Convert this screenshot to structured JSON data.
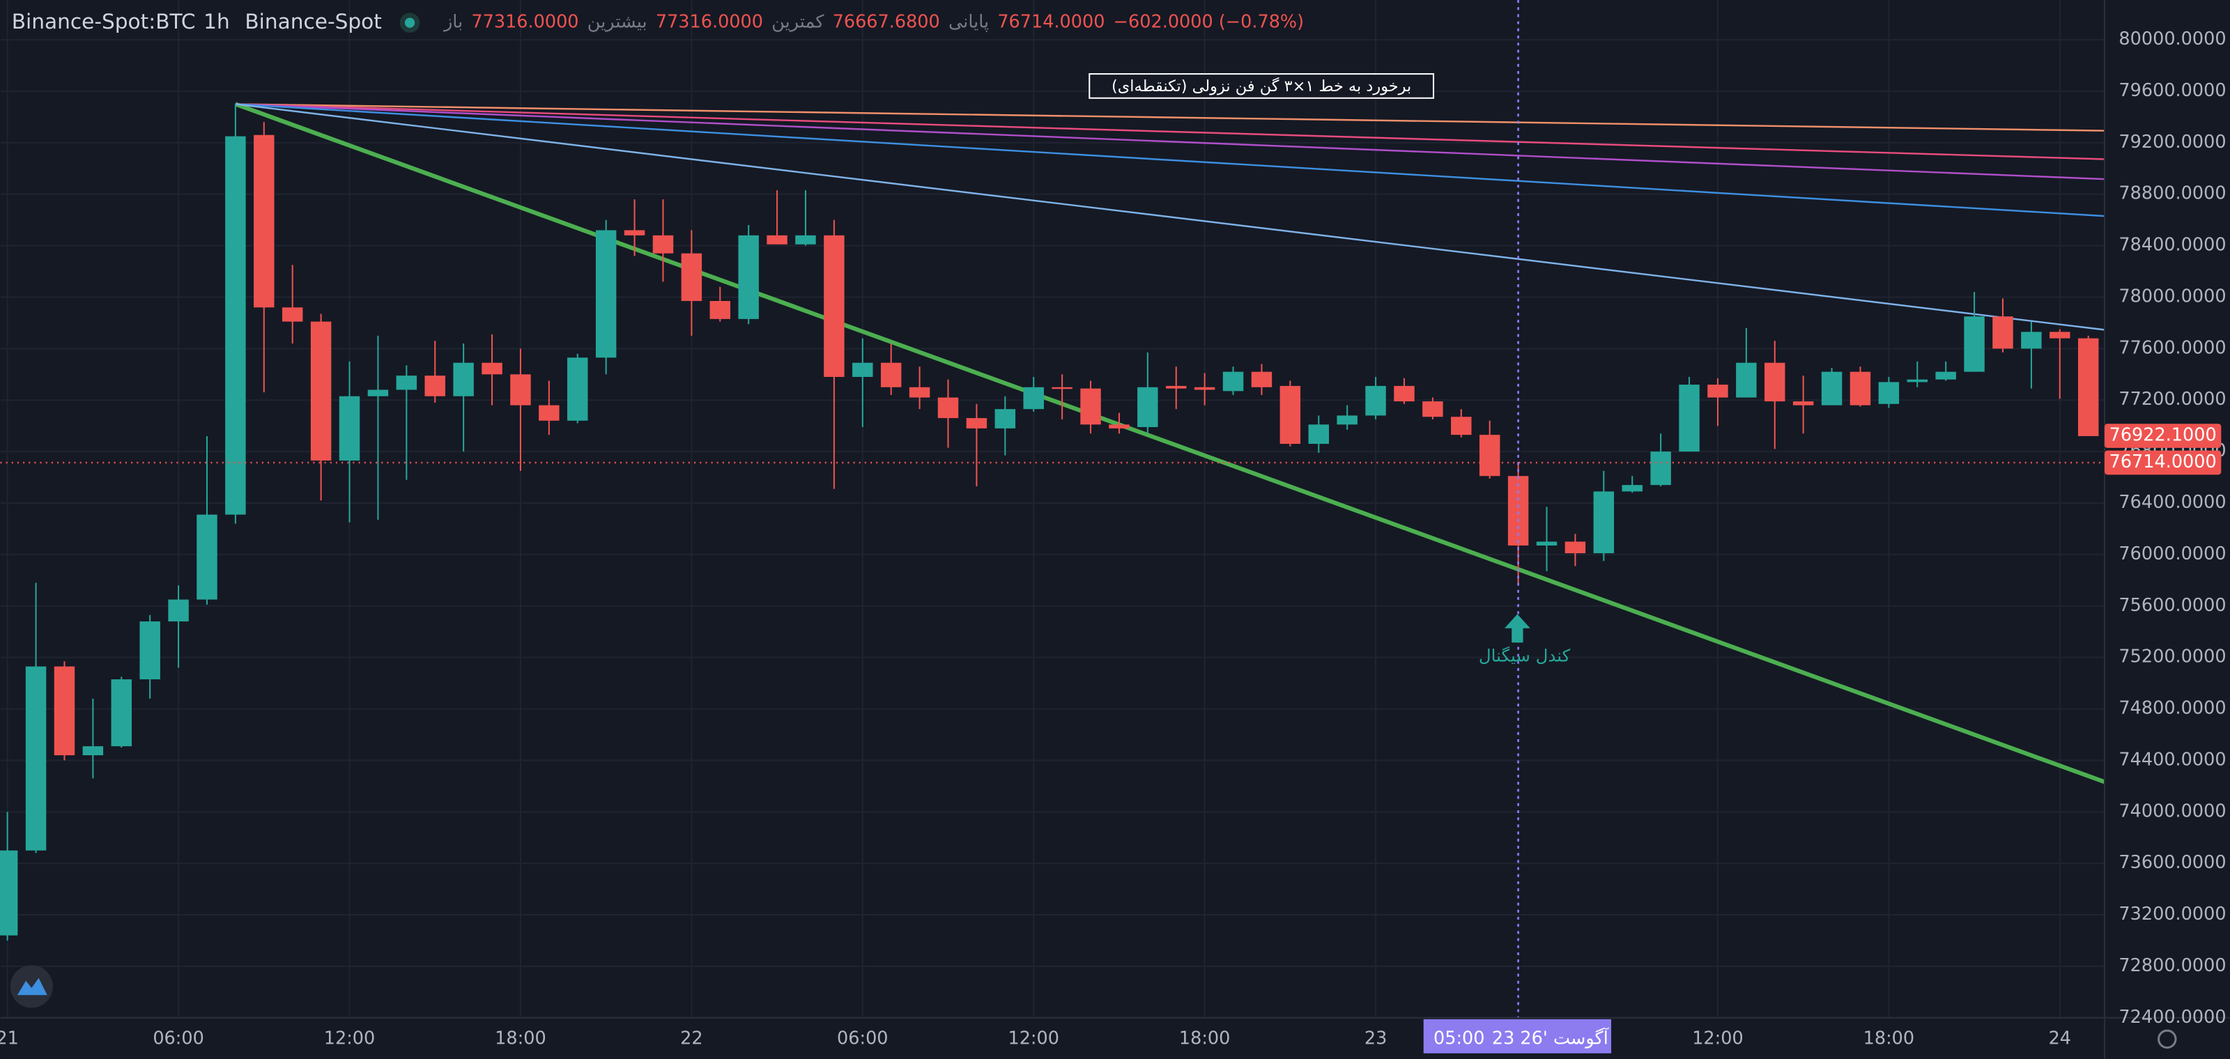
{
  "header": {
    "symbol": "Binance-Spot:BTC",
    "interval": "1h",
    "exchange": "Binance-Spot",
    "ohlc": [
      {
        "label": "باز",
        "value": "77316.0000"
      },
      {
        "label": "بیشترین",
        "value": "77316.0000"
      },
      {
        "label": "کمترین",
        "value": "76667.6800"
      },
      {
        "label": "پایانی",
        "value": "76714.0000"
      }
    ],
    "change": "−602.0000 (−0.78%)"
  },
  "annotation": "برخورد به خط ۱×۳ گن فن نزولی (تکنقطه‌ای)",
  "signal_label": "کندل سیگنال",
  "chart_data": {
    "type": "candlestick",
    "up_color": "#26a69a",
    "down_color": "#ef5350",
    "x": [
      0,
      1,
      2,
      3,
      4,
      5,
      6,
      7,
      8,
      9,
      10,
      11,
      12,
      13,
      14,
      15,
      16,
      17,
      18,
      19,
      20,
      21,
      22,
      23,
      24,
      25,
      26,
      27,
      28,
      29,
      30,
      31,
      32,
      33,
      34,
      35,
      36,
      37,
      38,
      39,
      40,
      41,
      42,
      43,
      44,
      45,
      46,
      47,
      48,
      49,
      50,
      51,
      52,
      53,
      54,
      55,
      56,
      57,
      58,
      59,
      60,
      61,
      62,
      63,
      64,
      65,
      66,
      67,
      68,
      69,
      70,
      71,
      72,
      73
    ],
    "open": [
      73040,
      73700,
      75130,
      74440,
      74510,
      75030,
      75480,
      75650,
      76310,
      79260,
      77920,
      77810,
      76730,
      77230,
      77280,
      77390,
      77230,
      77490,
      77400,
      77160,
      77040,
      77530,
      78520,
      78480,
      78340,
      77970,
      77830,
      78480,
      78410,
      78480,
      77380,
      77490,
      77300,
      77220,
      77060,
      76980,
      77130,
      77300,
      77290,
      77010,
      76990,
      77310,
      77300,
      77270,
      77420,
      77310,
      76860,
      77010,
      77080,
      77310,
      77190,
      77070,
      76930,
      76610,
      76070,
      76100,
      76010,
      76490,
      76540,
      76800,
      77320,
      77220,
      77490,
      77190,
      77160,
      77420,
      77170,
      77340,
      77360,
      77420,
      77850,
      77600,
      77730,
      77680
    ],
    "high": [
      74000,
      75780,
      75170,
      74880,
      75050,
      75530,
      75760,
      76920,
      79500,
      79360,
      78250,
      77870,
      77500,
      77700,
      77470,
      77660,
      77640,
      77710,
      77600,
      77350,
      77560,
      78600,
      78760,
      78760,
      78520,
      78080,
      78560,
      78830,
      78830,
      78600,
      77680,
      77640,
      77460,
      77360,
      77170,
      77230,
      77380,
      77400,
      77350,
      77100,
      77570,
      77460,
      77410,
      77460,
      77480,
      77350,
      77080,
      77160,
      77380,
      77370,
      77220,
      77130,
      77040,
      76720,
      76370,
      76160,
      76650,
      76610,
      76940,
      77380,
      77370,
      77760,
      77660,
      77390,
      77450,
      77460,
      77380,
      77500,
      77500,
      78040,
      77990,
      77810,
      77750,
      77700
    ],
    "low": [
      73000,
      73680,
      74400,
      74260,
      74500,
      74880,
      75120,
      75610,
      76240,
      77260,
      77640,
      76420,
      76250,
      76270,
      76580,
      77180,
      76800,
      77160,
      76650,
      76930,
      77020,
      77400,
      78320,
      78120,
      77700,
      77810,
      77790,
      78410,
      78400,
      76510,
      76990,
      77240,
      77130,
      76830,
      76530,
      76770,
      77110,
      77050,
      76940,
      76940,
      76940,
      77130,
      77160,
      77240,
      77240,
      76840,
      76790,
      76970,
      77050,
      77170,
      77050,
      76910,
      76590,
      75780,
      75870,
      75910,
      75950,
      76480,
      76530,
      76800,
      77000,
      77220,
      76820,
      76940,
      77160,
      77150,
      77140,
      77300,
      77350,
      77420,
      77570,
      77290,
      77210,
      76920
    ],
    "close": [
      73700,
      75130,
      74440,
      74510,
      75030,
      75480,
      75650,
      76310,
      79250,
      77920,
      77810,
      76730,
      77230,
      77280,
      77390,
      77230,
      77490,
      77400,
      77160,
      77040,
      77530,
      78520,
      78480,
      78340,
      77970,
      77830,
      78480,
      78410,
      78480,
      77380,
      77490,
      77300,
      77220,
      77060,
      76980,
      77130,
      77300,
      77290,
      77010,
      76980,
      77300,
      77290,
      77280,
      77420,
      77300,
      76860,
      77010,
      77080,
      77310,
      77190,
      77070,
      76930,
      76610,
      76070,
      76100,
      76010,
      76490,
      76540,
      76800,
      77320,
      77220,
      77490,
      77190,
      77160,
      77420,
      77160,
      77340,
      77360,
      77420,
      77850,
      77600,
      77730,
      77680,
      76920
    ],
    "xlim": [
      -0.25,
      73.57
    ],
    "ylim": [
      72400,
      80309
    ],
    "xticks": [
      {
        "value": 0,
        "label": "21"
      },
      {
        "value": 6,
        "label": "06:00"
      },
      {
        "value": 12,
        "label": "12:00"
      },
      {
        "value": 18,
        "label": "18:00"
      },
      {
        "value": 24,
        "label": "22"
      },
      {
        "value": 30,
        "label": "06:00"
      },
      {
        "value": 36,
        "label": "12:00"
      },
      {
        "value": 42,
        "label": "18:00"
      },
      {
        "value": 48,
        "label": "23"
      },
      {
        "value": 60,
        "label": "12:00"
      },
      {
        "value": 66,
        "label": "18:00"
      },
      {
        "value": 72,
        "label": "24"
      }
    ],
    "yticks": [
      {
        "value": 72400,
        "label": "72400.0000"
      },
      {
        "value": 72800,
        "label": "72800.0000"
      },
      {
        "value": 73200,
        "label": "73200.0000"
      },
      {
        "value": 73600,
        "label": "73600.0000"
      },
      {
        "value": 74000,
        "label": "74000.0000"
      },
      {
        "value": 74400,
        "label": "74400.0000"
      },
      {
        "value": 74800,
        "label": "74800.0000"
      },
      {
        "value": 75200,
        "label": "75200.0000"
      },
      {
        "value": 75600,
        "label": "75600.0000"
      },
      {
        "value": 76000,
        "label": "76000.0000"
      },
      {
        "value": 76400,
        "label": "76400.0000"
      },
      {
        "value": 76800,
        "label": "76800.0000"
      },
      {
        "value": 77200,
        "label": "77200.0000"
      },
      {
        "value": 77600,
        "label": "77600.0000"
      },
      {
        "value": 78000,
        "label": "78000.0000"
      },
      {
        "value": 78400,
        "label": "78400.0000"
      },
      {
        "value": 78800,
        "label": "78800.0000"
      },
      {
        "value": 79200,
        "label": "79200.0000"
      },
      {
        "value": 79600,
        "label": "79600.0000"
      },
      {
        "value": 80000,
        "label": "80000.0000"
      }
    ],
    "grid": true,
    "drawings": [
      {
        "color": "#4caf50",
        "points": [
          [
            8,
            79500
          ],
          [
            73.57,
            74233
          ]
        ]
      },
      {
        "color": "#f0906a",
        "points": [
          [
            8,
            79500
          ],
          [
            73.57,
            79293
          ]
        ]
      },
      {
        "color": "#e84c7d",
        "points": [
          [
            8,
            79500
          ],
          [
            73.57,
            79072
          ]
        ]
      },
      {
        "color": "#b04fc9",
        "points": [
          [
            8,
            79500
          ],
          [
            73.57,
            78917
          ]
        ]
      },
      {
        "color": "#3d8fe0",
        "points": [
          [
            8,
            79500
          ],
          [
            73.57,
            78630
          ]
        ]
      },
      {
        "color": "#7fb2e8",
        "points": [
          [
            8,
            79500
          ],
          [
            73.57,
            77746
          ]
        ]
      }
    ],
    "price_labels": [
      {
        "value": 76922.1,
        "label": "76922.1000",
        "color": "#ef5350"
      },
      {
        "value": 76714,
        "label": "76714.0000",
        "color": "#ef5350"
      }
    ],
    "crosshair_x": 53,
    "crosshair_time": "05:00",
    "crosshair_date": "23 آگوست '26"
  }
}
